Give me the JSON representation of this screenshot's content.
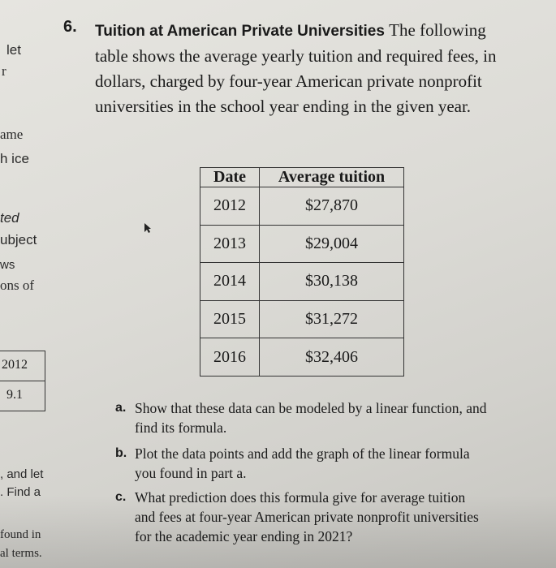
{
  "left_fragments": {
    "let": "let",
    "r": "r",
    "ame": "ame",
    "h_ice": "h ice",
    "ted": "ted",
    "ubject": "ubject",
    "ws": "ws",
    "ons_of": "ons of",
    "box_2012": "2012",
    "box_9_1": "9.1",
    "and_let": ", and let",
    "find_a": ". Find a",
    "found_in": "found in",
    "al_terms": "al terms."
  },
  "problem": {
    "number": "6.",
    "title": "Tuition at American Private Universities",
    "text_1": "The following table shows the average yearly tuition and required fees, in dollars, charged by four-year American private nonprofit universities in the school year ending in the given year."
  },
  "table": {
    "headers": [
      "Date",
      "Average tuition"
    ],
    "rows": [
      [
        "2012",
        "$27,870"
      ],
      [
        "2013",
        "$29,004"
      ],
      [
        "2014",
        "$30,138"
      ],
      [
        "2015",
        "$31,272"
      ],
      [
        "2016",
        "$32,406"
      ]
    ]
  },
  "questions": [
    {
      "label": "a.",
      "text": "Show that these data can be modeled by a linear function, and find its formula."
    },
    {
      "label": "b.",
      "text": "Plot the data points and add the graph of the linear formula you found in part a."
    },
    {
      "label": "c.",
      "text": "What prediction does this formula give for average tuition and fees at four-year American private nonprofit universities for the academic year ending in 2021?"
    }
  ]
}
